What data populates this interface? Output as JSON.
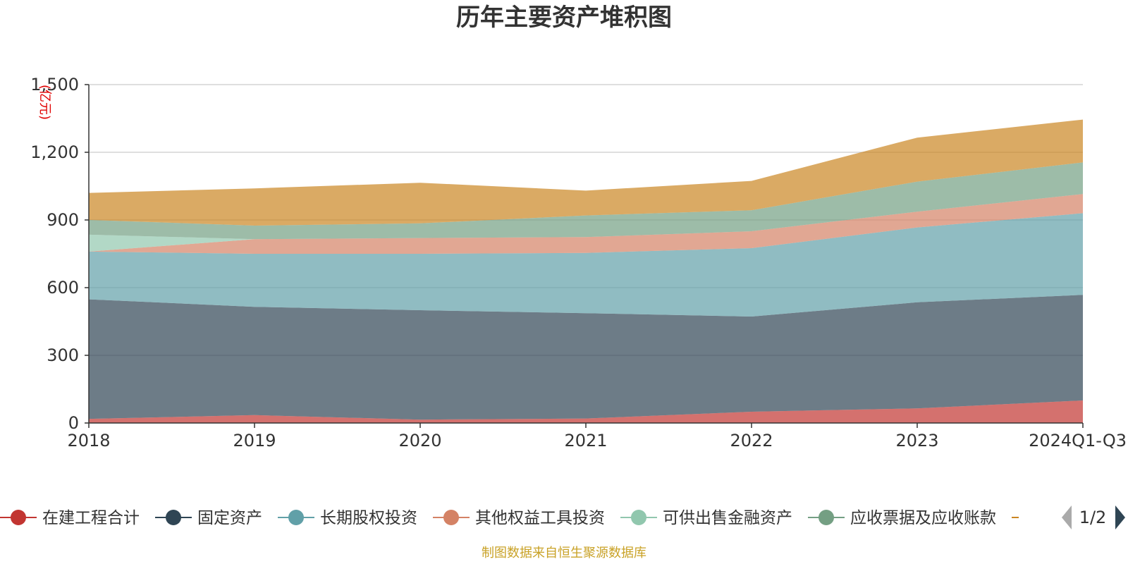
{
  "chart_data": {
    "type": "area",
    "stacked": true,
    "title": "历年主要资产堆积图",
    "ylabel": "(亿元)",
    "ylim": [
      0,
      1500
    ],
    "y_ticks": [
      0,
      300,
      600,
      900,
      1200,
      1500
    ],
    "y_tick_labels": [
      "0",
      "300",
      "600",
      "900",
      "1,200",
      "1,500"
    ],
    "categories": [
      "2018",
      "2019",
      "2020",
      "2021",
      "2022",
      "2023",
      "2024Q1-Q3"
    ],
    "series": [
      {
        "name": "在建工程合计",
        "color": "#c23531",
        "values": [
          18,
          35,
          15,
          20,
          50,
          65,
          100
        ]
      },
      {
        "name": "固定资产",
        "color": "#2f4554",
        "values": [
          530,
          480,
          485,
          467,
          422,
          470,
          468
        ]
      },
      {
        "name": "长期股权投资",
        "color": "#61a0a8",
        "values": [
          212,
          235,
          250,
          267,
          303,
          332,
          362
        ]
      },
      {
        "name": "其他权益工具投资",
        "color": "#d48265",
        "values": [
          0,
          65,
          70,
          70,
          75,
          70,
          85
        ]
      },
      {
        "name": "可供出售金融资产",
        "color": "#91c7ae",
        "values": [
          75,
          0,
          0,
          0,
          0,
          0,
          0
        ]
      },
      {
        "name": "应收票据及应收账款",
        "color": "#749f83",
        "values": [
          65,
          60,
          65,
          96,
          93,
          133,
          140
        ]
      },
      {
        "name": "",
        "color": "#ca8622",
        "values": [
          120,
          165,
          180,
          110,
          130,
          195,
          190
        ]
      }
    ],
    "legend": {
      "position": "bottom",
      "page_label": "1/2"
    }
  },
  "footer": {
    "source": "制图数据来自恒生聚源数据库"
  }
}
